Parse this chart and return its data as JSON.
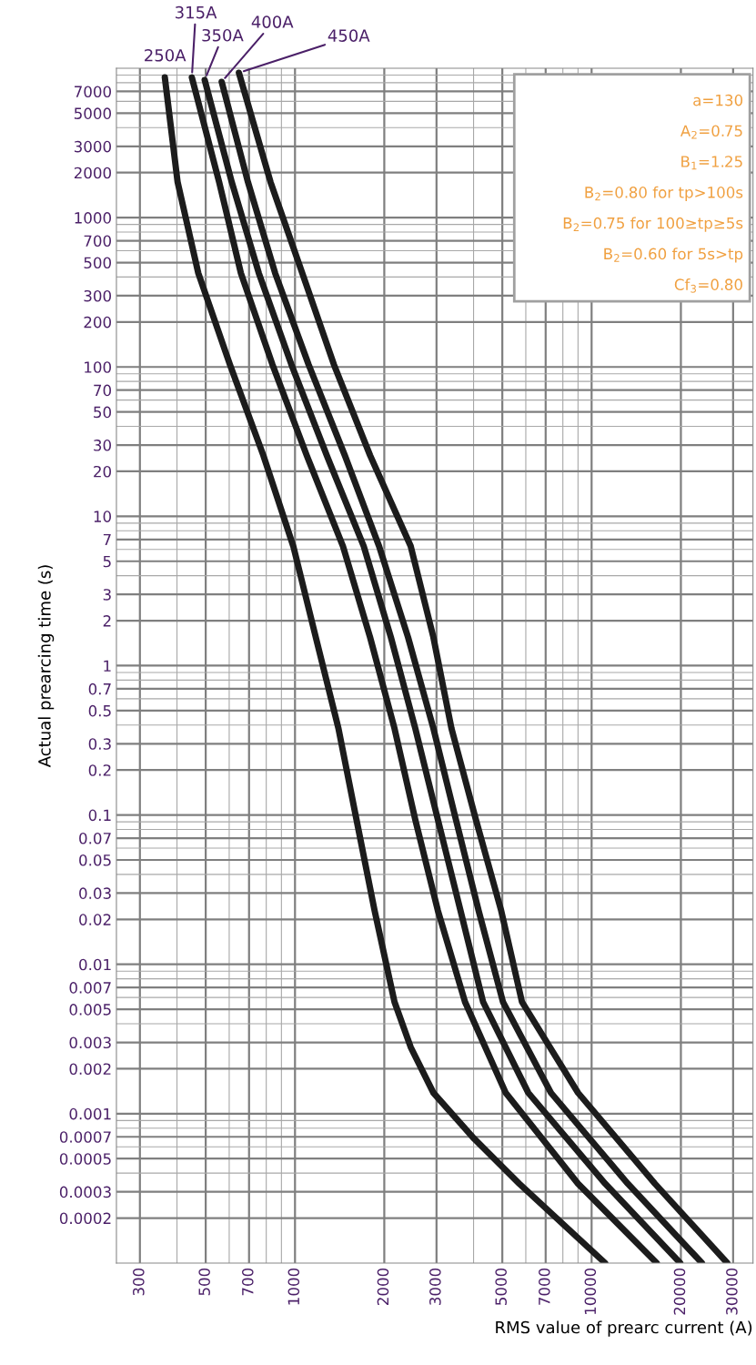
{
  "chart_data": {
    "type": "line",
    "xlabel": "RMS value of prearc current (A)",
    "ylabel": "Actual prearcing time (s)",
    "log": "xy",
    "grid": true,
    "legend": false,
    "marker": "none",
    "line_style": "solid",
    "xlim": [
      250,
      35000
    ],
    "ylim": [
      0.0001,
      10000
    ],
    "xticks": [
      300,
      500,
      700,
      1000,
      2000,
      3000,
      5000,
      7000,
      10000,
      20000,
      30000
    ],
    "yticks": [
      7000,
      5000,
      3000,
      2000,
      1000,
      700,
      500,
      300,
      200,
      100,
      70,
      50,
      30,
      20,
      10,
      7,
      5,
      3,
      2,
      1,
      0.7,
      0.5,
      0.3,
      0.2,
      0.1,
      0.07,
      0.05,
      0.03,
      0.02,
      0.01,
      0.007,
      0.005,
      0.003,
      0.002,
      0.001,
      0.0007,
      0.0005,
      0.0003,
      0.0002
    ],
    "series": [
      {
        "name": "250A",
        "color": "#1c1c1c",
        "x": [
          364,
          402,
          472,
          603,
          782,
          987,
          1175,
          1401,
          1612,
          1855,
          2165,
          2455,
          2928,
          4018,
          5703,
          11110
        ],
        "values": [
          8690,
          1730,
          425,
          104,
          25.6,
          6.3,
          1.55,
          0.38,
          0.093,
          0.0229,
          0.0056,
          0.00279,
          0.00138,
          0.00068,
          0.00034,
          0.0001
        ]
      },
      {
        "name": "315A",
        "color": "#1c1c1c",
        "x": [
          449,
          555,
          657,
          839,
          1095,
          1451,
          1791,
          2165,
          2544,
          3032,
          3743,
          5133,
          9000,
          16580
        ],
        "values": [
          8690,
          1730,
          425,
          104,
          25.6,
          6.3,
          1.55,
          0.38,
          0.093,
          0.0229,
          0.0056,
          0.00138,
          0.00034,
          0.0001
        ]
      },
      {
        "name": "350A",
        "color": "#1c1c1c",
        "x": [
          496,
          612,
          755,
          972,
          1279,
          1705,
          2105,
          2544,
          3032,
          3614,
          4307,
          6117,
          11110,
          19900
        ],
        "values": [
          8340,
          1730,
          425,
          104,
          25.6,
          6.3,
          1.55,
          0.38,
          0.093,
          0.0229,
          0.0056,
          0.00138,
          0.00034,
          0.0001
        ]
      },
      {
        "name": "400A",
        "color": "#1c1c1c",
        "x": [
          566,
          694,
          857,
          1111,
          1472,
          1921,
          2405,
          2928,
          3488,
          4159,
          5026,
          7293,
          13240,
          23550
        ],
        "values": [
          8110,
          1730,
          425,
          104,
          25.6,
          6.3,
          1.55,
          0.38,
          0.093,
          0.0229,
          0.0056,
          0.00138,
          0.00034,
          0.0001
        ]
      },
      {
        "name": "450A",
        "color": "#1c1c1c",
        "x": [
          647,
          827,
          1058,
          1352,
          1791,
          2456,
          2928,
          3369,
          4073,
          4956,
          5824,
          9000,
          16350,
          28670
        ],
        "values": [
          9330,
          1730,
          425,
          104,
          25.6,
          6.3,
          1.55,
          0.38,
          0.093,
          0.0229,
          0.0056,
          0.00138,
          0.00034,
          0.0001
        ]
      }
    ],
    "annotations": [
      "a=130",
      "A$_{2}$=0.75",
      "B$_{1}$=1.25",
      "B$_{2}$=0.80 for tp>100s",
      "B$_{2}$=0.75 for 100≥tp≥5s",
      "B$_{2}$=0.60 for 5s>tp",
      "Cf$_{3}$=0.80"
    ]
  }
}
